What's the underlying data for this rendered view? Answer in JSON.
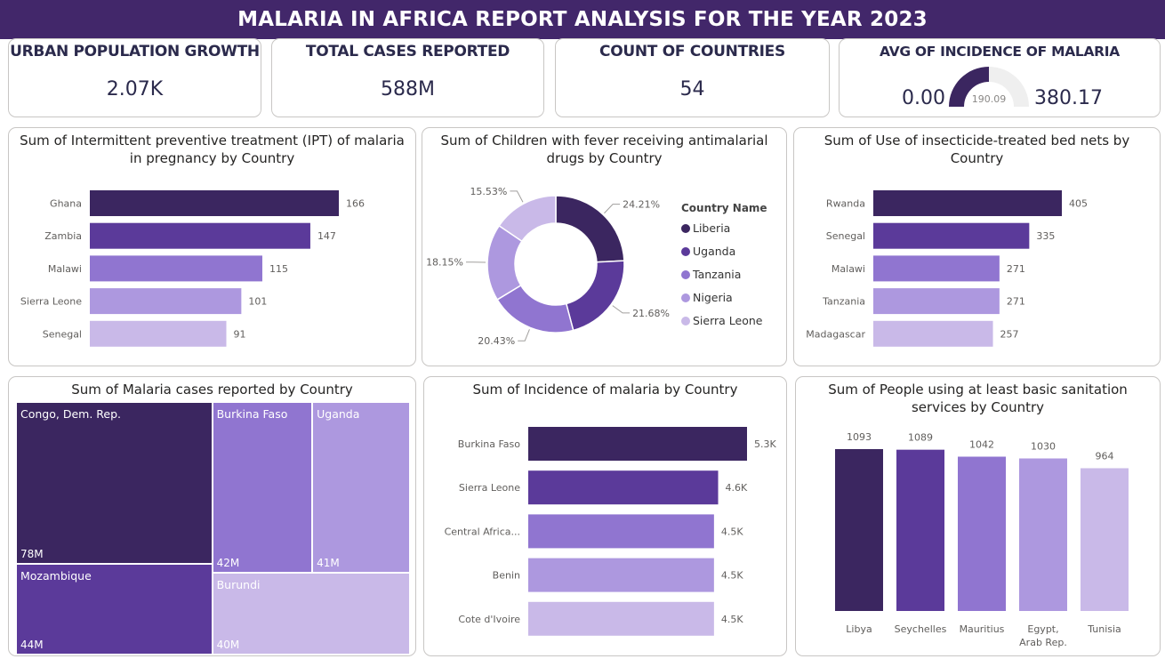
{
  "header": {
    "title": "MALARIA IN AFRICA REPORT ANALYSIS FOR THE YEAR 2023"
  },
  "kpis": {
    "urban": {
      "title": "URBAN POPULATION GROWTH",
      "value": "2.07K"
    },
    "cases": {
      "title": "TOTAL CASES REPORTED",
      "value": "588M"
    },
    "countries": {
      "title": "COUNT OF COUNTRIES",
      "value": "54"
    },
    "incidence": {
      "title": "AVG OF INCIDENCE OF MALARIA",
      "min": "0.00",
      "max": "380.17",
      "target": "190.09",
      "value_fraction": 0.5
    }
  },
  "colors": {
    "c1": "#3b2660",
    "c2": "#5b3a9a",
    "c3": "#9075d0",
    "c4": "#ad98df",
    "c5": "#c9b9e8",
    "header": "#42276a"
  },
  "chart_data": [
    {
      "type": "bar",
      "orientation": "horizontal",
      "title": "Sum of Intermittent preventive treatment (IPT) of malaria in pregnancy by Country",
      "categories": [
        "Ghana",
        "Zambia",
        "Malawi",
        "Sierra Leone",
        "Senegal"
      ],
      "values": [
        166,
        147,
        115,
        101,
        91
      ],
      "labels": [
        "166",
        "147",
        "115",
        "101",
        "91"
      ]
    },
    {
      "type": "pie",
      "donut": true,
      "title": "Sum of Children with fever receiving antimalarial drugs by Country",
      "legend_title": "Country Name",
      "categories": [
        "Liberia",
        "Uganda",
        "Tanzania",
        "Nigeria",
        "Sierra Leone"
      ],
      "values": [
        24.21,
        21.68,
        20.43,
        18.15,
        15.53
      ],
      "labels": [
        "24.21%",
        "21.68%",
        "20.43%",
        "18.15%",
        "15.53%"
      ],
      "legend": "right"
    },
    {
      "type": "bar",
      "orientation": "horizontal",
      "title": "Sum of Use of insecticide-treated bed nets by Country",
      "categories": [
        "Rwanda",
        "Senegal",
        "Malawi",
        "Tanzania",
        "Madagascar"
      ],
      "values": [
        405,
        335,
        271,
        271,
        257
      ],
      "labels": [
        "405",
        "335",
        "271",
        "271",
        "257"
      ]
    },
    {
      "type": "treemap",
      "title": "Sum of Malaria cases reported by Country",
      "categories": [
        "Congo, Dem. Rep.",
        "Mozambique",
        "Burkina Faso",
        "Uganda",
        "Burundi"
      ],
      "values": [
        78,
        44,
        42,
        41,
        40
      ],
      "labels": [
        "78M",
        "44M",
        "42M",
        "41M",
        "40M"
      ]
    },
    {
      "type": "bar",
      "orientation": "horizontal",
      "title": "Sum of Incidence of malaria by Country",
      "categories": [
        "Burkina Faso",
        "Sierra Leone",
        "Central Africa...",
        "Benin",
        "Cote d'Ivoire"
      ],
      "values": [
        5300,
        4600,
        4500,
        4500,
        4500
      ],
      "labels": [
        "5.3K",
        "4.6K",
        "4.5K",
        "4.5K",
        "4.5K"
      ]
    },
    {
      "type": "bar",
      "orientation": "vertical",
      "title": "Sum of People using at least basic sanitation services by Country",
      "categories": [
        "Libya",
        "Seychelles",
        "Mauritius",
        "Egypt, Arab Rep.",
        "Tunisia"
      ],
      "values": [
        1093,
        1089,
        1042,
        1030,
        964
      ],
      "labels": [
        "1093",
        "1089",
        "1042",
        "1030",
        "964"
      ]
    }
  ]
}
